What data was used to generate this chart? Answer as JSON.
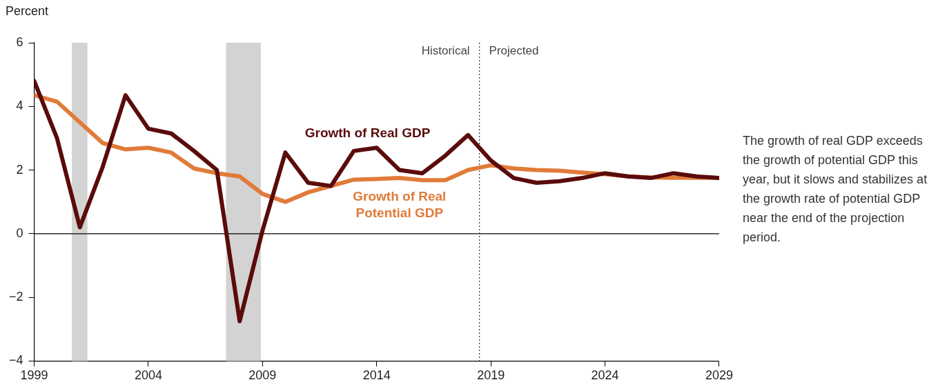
{
  "chart_data": {
    "type": "line",
    "ylabel": "Percent",
    "x": [
      1999,
      2000,
      2001,
      2002,
      2003,
      2004,
      2005,
      2006,
      2007,
      2008,
      2009,
      2010,
      2011,
      2012,
      2013,
      2014,
      2015,
      2016,
      2017,
      2018,
      2019,
      2020,
      2021,
      2022,
      2023,
      2024,
      2025,
      2026,
      2027,
      2028,
      2029
    ],
    "series": [
      {
        "name": "Growth of Real GDP",
        "color": "#5a0b0b",
        "values": [
          4.8,
          3.0,
          0.2,
          2.1,
          4.35,
          3.3,
          3.15,
          2.6,
          2.0,
          -2.75,
          0.1,
          2.55,
          1.6,
          1.5,
          2.6,
          2.7,
          2.0,
          1.9,
          2.45,
          3.1,
          2.3,
          1.75,
          1.6,
          1.65,
          1.75,
          1.9,
          1.8,
          1.75,
          1.9,
          1.8,
          1.75
        ]
      },
      {
        "name": "Growth of Real Potential GDP",
        "color": "#e07b39",
        "values": [
          4.35,
          4.15,
          3.5,
          2.85,
          2.65,
          2.7,
          2.55,
          2.05,
          1.9,
          1.8,
          1.25,
          1.0,
          1.3,
          1.5,
          1.7,
          1.72,
          1.75,
          1.68,
          1.68,
          2.0,
          2.15,
          2.05,
          2.0,
          1.98,
          1.92,
          1.87,
          1.8,
          1.77,
          1.76,
          1.76,
          1.75
        ]
      }
    ],
    "xlim": [
      1999,
      2029
    ],
    "xticks": [
      1999,
      2004,
      2009,
      2014,
      2019,
      2024,
      2029
    ],
    "ylim": [
      -4,
      6
    ],
    "yticks": [
      -4,
      -2,
      0,
      2,
      4,
      6
    ],
    "grid": false,
    "legend": false,
    "marker": "none",
    "line_style": "solid",
    "ref_lines": [
      {
        "axis": "y",
        "value": 0,
        "color": "#000000",
        "line_style": "solid"
      },
      {
        "axis": "x",
        "value": 2018.5,
        "color": "#333333",
        "line_style": "dotted"
      }
    ],
    "bands": [
      {
        "axis": "x",
        "from": 2000.65,
        "to": 2001.33,
        "color": "#d3d3d3"
      },
      {
        "axis": "x",
        "from": 2007.4,
        "to": 2008.93,
        "color": "#d3d3d3"
      }
    ],
    "annotations": [
      "Historical",
      "Projected",
      "The growth of real GDP exceeds the growth of potential GDP this year, but it slows and stabilizes at the growth rate of potential GDP near the end of the projection period."
    ]
  }
}
